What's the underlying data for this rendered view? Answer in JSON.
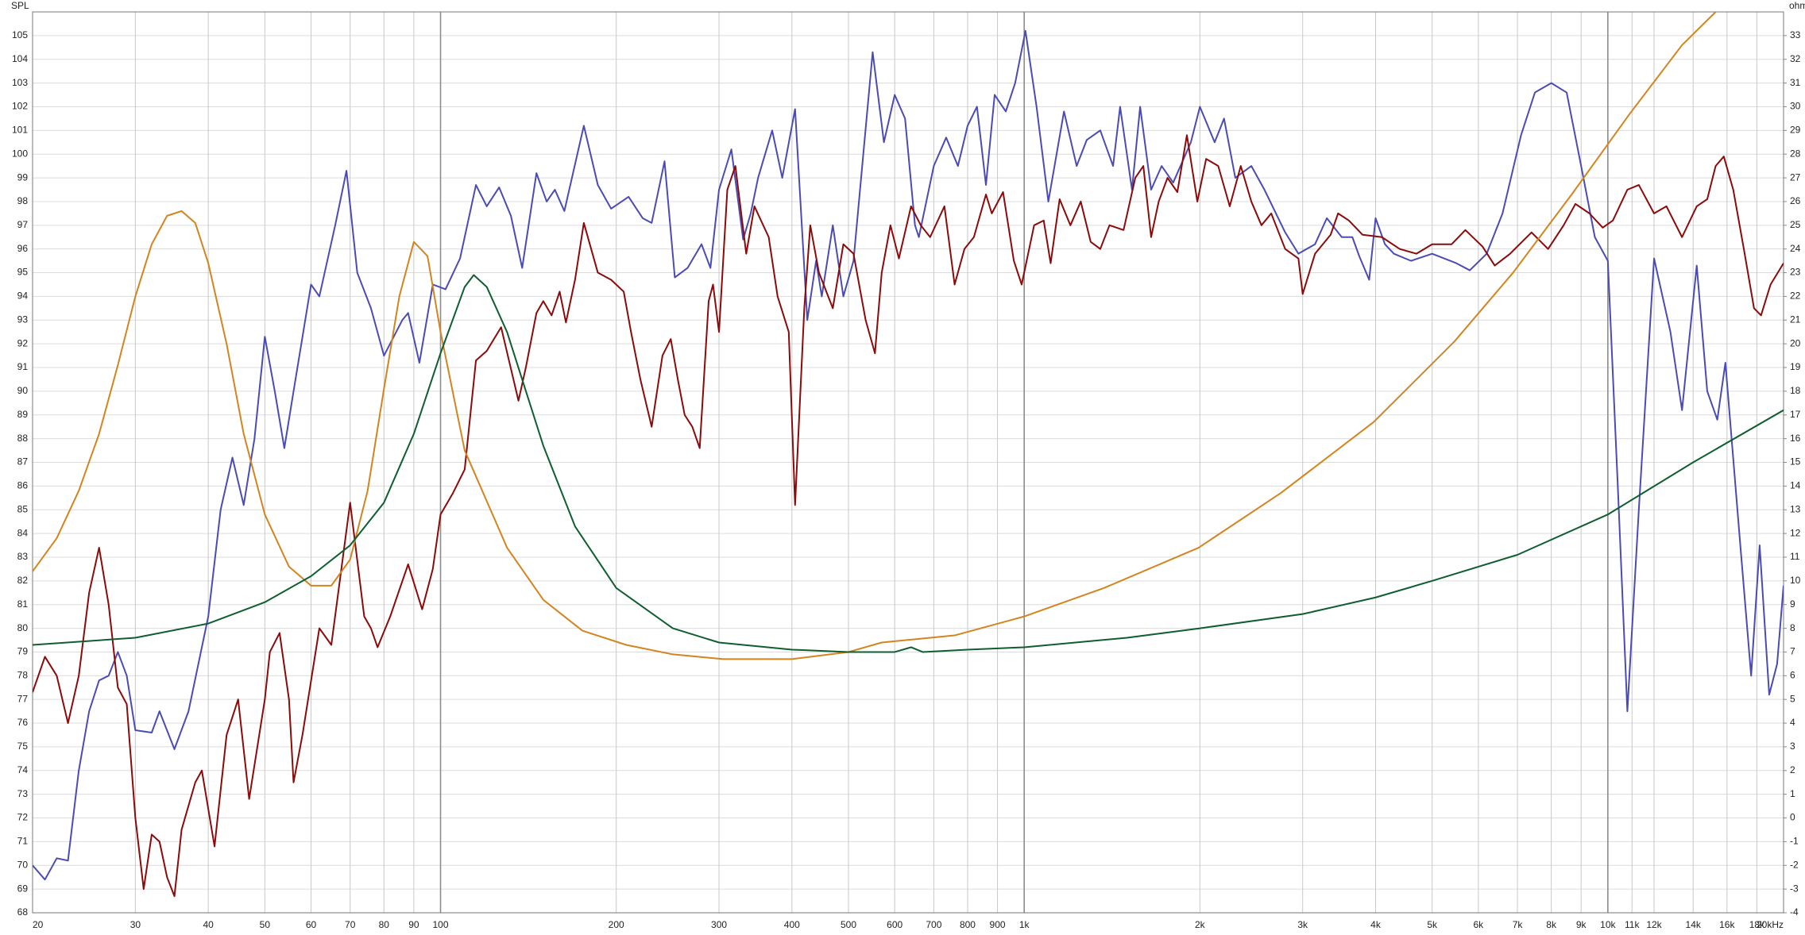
{
  "chart_data": {
    "type": "line",
    "ylabel": "SPL",
    "y2label": "ohm",
    "xscale": "log",
    "grid": true,
    "xlim": [
      20,
      20000
    ],
    "ylim": [
      68,
      106
    ],
    "y2lim": [
      -4,
      34
    ],
    "xticks": [
      20,
      30,
      40,
      50,
      60,
      70,
      80,
      90,
      100,
      200,
      300,
      400,
      500,
      600,
      700,
      800,
      900,
      {
        "value": 1000,
        "label": "1k"
      },
      {
        "value": 2000,
        "label": "2k"
      },
      {
        "value": 3000,
        "label": "3k"
      },
      {
        "value": 4000,
        "label": "4k"
      },
      {
        "value": 5000,
        "label": "5k"
      },
      {
        "value": 6000,
        "label": "6k"
      },
      {
        "value": 7000,
        "label": "7k"
      },
      {
        "value": 8000,
        "label": "8k"
      },
      {
        "value": 9000,
        "label": "9k"
      },
      {
        "value": 10000,
        "label": "10k"
      },
      {
        "value": 11000,
        "label": "11k"
      },
      {
        "value": 12000,
        "label": "12k"
      },
      {
        "value": 14000,
        "label": "14k"
      },
      {
        "value": 16000,
        "label": "16k"
      },
      {
        "value": 18000,
        "label": "18k"
      },
      {
        "value": 20000,
        "label": "20kHz"
      }
    ],
    "yticks": [
      68,
      69,
      70,
      71,
      72,
      73,
      74,
      75,
      76,
      77,
      78,
      79,
      80,
      81,
      82,
      83,
      84,
      85,
      86,
      87,
      88,
      89,
      90,
      91,
      92,
      93,
      94,
      95,
      96,
      97,
      98,
      99,
      100,
      101,
      102,
      103,
      104,
      105
    ],
    "y2ticks": [
      -4,
      -3,
      -2,
      -1,
      0,
      1,
      2,
      3,
      4,
      5,
      6,
      7,
      8,
      9,
      10,
      11,
      12,
      13,
      14,
      15,
      16,
      17,
      18,
      19,
      20,
      21,
      22,
      23,
      24,
      25,
      26,
      27,
      28,
      29,
      30,
      31,
      32,
      33
    ],
    "series": [
      {
        "color": "#4b4bb5",
        "axis": "y",
        "x": [
          20,
          21,
          22,
          23,
          24,
          25,
          26,
          27,
          28,
          29,
          30,
          32,
          33,
          35,
          37,
          40,
          42,
          44,
          46,
          48,
          50,
          52,
          54,
          56,
          60,
          62,
          66,
          69,
          72,
          76,
          80,
          86,
          88,
          92,
          97,
          102,
          108,
          115,
          120,
          126,
          132,
          138,
          146,
          152,
          157,
          163,
          176,
          186,
          196,
          210,
          222,
          230,
          242,
          252,
          265,
          280,
          290,
          300,
          315,
          330,
          340,
          350,
          370,
          385,
          405,
          425,
          440,
          450,
          470,
          490,
          510,
          550,
          575,
          600,
          625,
          650,
          660,
          700,
          735,
          770,
          800,
          830,
          860,
          890,
          930,
          965,
          1005,
          1050,
          1100,
          1170,
          1230,
          1280,
          1350,
          1420,
          1460,
          1530,
          1580,
          1650,
          1720,
          1800,
          1930,
          2000,
          2120,
          2200,
          2300,
          2450,
          2580,
          2700,
          2800,
          2950,
          3150,
          3300,
          3500,
          3650,
          3750,
          3900,
          4000,
          4150,
          4300,
          4600,
          5000,
          5500,
          5800,
          6200,
          6600,
          7100,
          7500,
          8000,
          8500,
          9000,
          9500,
          10000,
          10400,
          10800,
          11300,
          12000,
          12800,
          13400,
          14200,
          14800,
          15400,
          15900,
          16800,
          17600,
          18200,
          18900,
          19500,
          20000
        ],
        "values": [
          70,
          69.4,
          70.3,
          70.2,
          74,
          76.5,
          77.8,
          78,
          79,
          78,
          75.7,
          75.6,
          76.5,
          74.9,
          76.5,
          80.5,
          85,
          87.2,
          85.2,
          88,
          92.3,
          90,
          87.6,
          90,
          94.5,
          94,
          97,
          99.3,
          95,
          93.5,
          91.5,
          93,
          93.3,
          91.2,
          94.5,
          94.3,
          95.6,
          98.7,
          97.8,
          98.6,
          97.4,
          95.2,
          99.2,
          98,
          98.5,
          97.6,
          101.2,
          98.7,
          97.7,
          98.2,
          97.3,
          97.1,
          99.7,
          94.8,
          95.2,
          96.2,
          95.2,
          98.5,
          100.2,
          96.4,
          97.5,
          99,
          101,
          99,
          101.9,
          93,
          95.5,
          94,
          97,
          94,
          95.5,
          104.3,
          100.5,
          102.5,
          101.5,
          97,
          96.5,
          99.5,
          100.7,
          99.5,
          101.2,
          102,
          98.7,
          102.5,
          101.8,
          103,
          105.2,
          102,
          98,
          101.8,
          99.5,
          100.6,
          101,
          99.5,
          102,
          98.5,
          102,
          98.5,
          99.5,
          98.8,
          100.5,
          102,
          100.5,
          101.5,
          99,
          99.5,
          98.5,
          97.5,
          96.7,
          95.8,
          96.2,
          97.3,
          96.5,
          96.5,
          95.7,
          94.7,
          97.3,
          96.2,
          95.8,
          95.5,
          95.8,
          95.4,
          95.1,
          95.8,
          97.5,
          100.8,
          102.6,
          103,
          102.6,
          99.5,
          96.5,
          95.5,
          86,
          76.5,
          85,
          95.6,
          92.5,
          89.2,
          95.3,
          90,
          88.8,
          91.2,
          84,
          78,
          83.5,
          77.2,
          78.5,
          81.8
        ]
      },
      {
        "color": "#8b0a0a",
        "axis": "y",
        "x": [
          20,
          21,
          22,
          23,
          24,
          25,
          26,
          27,
          28,
          29,
          30,
          31,
          32,
          33,
          34,
          35,
          36,
          38,
          39,
          41,
          43,
          45,
          47,
          50,
          51,
          53,
          55,
          56,
          58,
          62,
          65,
          70,
          74,
          76,
          78,
          82,
          88,
          93,
          97,
          100,
          105,
          110,
          115,
          120,
          127,
          136,
          140,
          146,
          150,
          155,
          160,
          164,
          170,
          176,
          186,
          196,
          206,
          212,
          220,
          230,
          240,
          248,
          255,
          262,
          270,
          278,
          288,
          293,
          300,
          310,
          320,
          334,
          345,
          365,
          378,
          395,
          405,
          420,
          430,
          445,
          470,
          490,
          510,
          535,
          555,
          570,
          590,
          610,
          640,
          665,
          690,
          730,
          760,
          790,
          820,
          860,
          880,
          920,
          960,
          990,
          1040,
          1080,
          1110,
          1150,
          1200,
          1250,
          1300,
          1350,
          1400,
          1480,
          1550,
          1600,
          1650,
          1700,
          1760,
          1830,
          1900,
          1980,
          2050,
          2150,
          2250,
          2350,
          2450,
          2550,
          2650,
          2800,
          2950,
          3000,
          3150,
          3350,
          3450,
          3600,
          3800,
          4100,
          4400,
          4700,
          5000,
          5400,
          5700,
          6100,
          6400,
          6800,
          7400,
          7900,
          8400,
          8800,
          9300,
          9800,
          10200,
          10800,
          11300,
          12000,
          12600,
          13400,
          14200,
          14800,
          15300,
          15800,
          16400,
          17100,
          17800,
          18300,
          19000,
          20000
        ],
        "values": [
          77.3,
          78.8,
          78,
          76,
          78,
          81.5,
          83.4,
          81,
          77.5,
          76.8,
          72,
          69,
          71.3,
          71,
          69.5,
          68.7,
          71.5,
          73.5,
          74,
          70.8,
          75.5,
          77,
          72.8,
          77,
          79,
          79.8,
          77,
          73.5,
          75.5,
          80,
          79.3,
          85.3,
          80.5,
          80,
          79.2,
          80.5,
          82.7,
          80.8,
          82.5,
          84.8,
          85.7,
          86.7,
          91.3,
          91.7,
          92.7,
          89.6,
          91,
          93.3,
          93.8,
          93.2,
          94.2,
          92.9,
          94.7,
          97.1,
          95,
          94.7,
          94.2,
          92.5,
          90.5,
          88.5,
          91.5,
          92.2,
          90.5,
          89,
          88.5,
          87.6,
          93.8,
          94.5,
          92.5,
          98.5,
          99.5,
          95.8,
          97.8,
          96.5,
          94,
          92.5,
          85.2,
          93.5,
          97,
          95,
          93.5,
          96.2,
          95.8,
          93,
          91.6,
          95,
          97,
          95.6,
          97.8,
          97,
          96.5,
          97.8,
          94.5,
          96,
          96.5,
          98.3,
          97.5,
          98.4,
          95.5,
          94.5,
          97,
          97.2,
          95.4,
          98.1,
          97,
          98,
          96.3,
          96,
          97,
          96.8,
          99,
          99.5,
          96.5,
          98,
          99,
          98.4,
          100.8,
          98,
          99.8,
          99.5,
          97.8,
          99.5,
          98,
          97,
          97.5,
          96,
          95.6,
          94.1,
          95.8,
          96.6,
          97.5,
          97.2,
          96.6,
          96.5,
          96,
          95.8,
          96.2,
          96.2,
          96.8,
          96.1,
          95.3,
          95.8,
          96.7,
          96,
          97,
          97.9,
          97.5,
          96.9,
          97.2,
          98.5,
          98.7,
          97.5,
          97.8,
          96.5,
          97.8,
          98.1,
          99.5,
          99.9,
          98.5,
          96,
          93.5,
          93.2,
          94.5,
          95.4
        ]
      },
      {
        "color": "#d4841e",
        "axis": "y2",
        "x": [
          20,
          22,
          24,
          26,
          28,
          30,
          32,
          34,
          36,
          38,
          40,
          43,
          46,
          50,
          55,
          60,
          65,
          70,
          75,
          80,
          85,
          90,
          95,
          100,
          110,
          130,
          150,
          175,
          208,
          250,
          305,
          400,
          500,
          570,
          760,
          1000,
          1370,
          1990,
          2750,
          3970,
          5460,
          6880,
          8670,
          10900,
          13400,
          15300
        ],
        "values": [
          10.4,
          11.8,
          13.8,
          16.2,
          19.1,
          22,
          24.2,
          25.4,
          25.6,
          25.1,
          23.4,
          20,
          16.2,
          12.8,
          10.6,
          9.8,
          9.8,
          10.9,
          13.8,
          18.1,
          22,
          24.3,
          23.7,
          20.5,
          15.5,
          11.4,
          9.2,
          7.9,
          7.3,
          6.9,
          6.7,
          6.7,
          7,
          7.4,
          7.7,
          8.5,
          9.7,
          11.4,
          13.7,
          16.7,
          20.1,
          23,
          26.3,
          29.7,
          32.6,
          34
        ]
      },
      {
        "color": "#0e5e30",
        "axis": "y2",
        "x": [
          20,
          30,
          40,
          50,
          60,
          70,
          80,
          90,
          100,
          110,
          114,
          120,
          130,
          150,
          170,
          200,
          250,
          300,
          400,
          500,
          600,
          640,
          670,
          800,
          1000,
          1500,
          2000,
          3000,
          4000,
          5000,
          7000,
          10000,
          14000,
          20000
        ],
        "values": [
          7.3,
          7.6,
          8.2,
          9.1,
          10.2,
          11.5,
          13.3,
          16.2,
          19.6,
          22.4,
          22.9,
          22.4,
          20.5,
          15.7,
          12.3,
          9.7,
          8,
          7.4,
          7.1,
          7,
          7,
          7.2,
          7,
          7.1,
          7.2,
          7.6,
          8,
          8.6,
          9.3,
          10,
          11.1,
          12.8,
          15,
          17.2
        ]
      }
    ]
  }
}
